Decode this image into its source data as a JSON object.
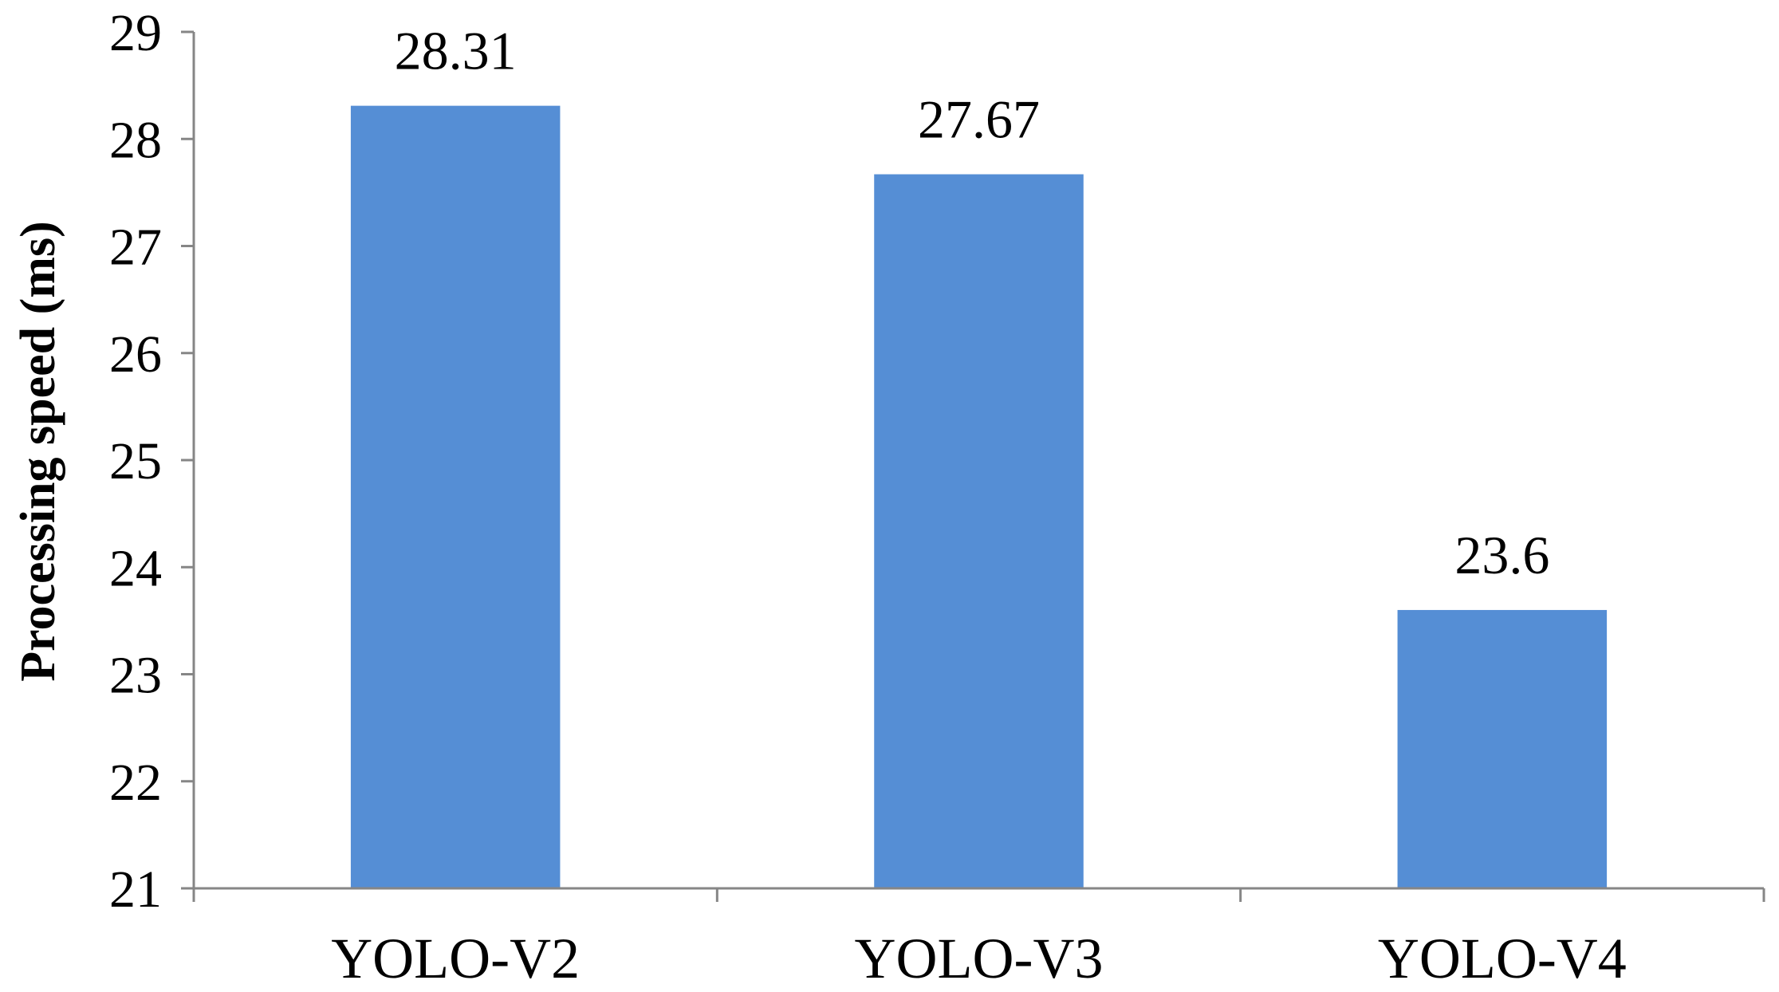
{
  "chart_data": {
    "type": "bar",
    "title": "",
    "xlabel": "",
    "ylabel": "Processing speed (ms)",
    "categories": [
      "YOLO-V2",
      "YOLO-V3",
      "YOLO-V4"
    ],
    "values": [
      28.31,
      27.67,
      23.6
    ],
    "value_labels": [
      "28.31",
      "27.67",
      "23.6"
    ],
    "ylim": [
      21,
      29
    ],
    "yticks": [
      21,
      22,
      23,
      24,
      25,
      26,
      27,
      28,
      29
    ],
    "grid": false,
    "legend": "none",
    "bar_color": "#558ed5",
    "axis_color": "#868686"
  }
}
